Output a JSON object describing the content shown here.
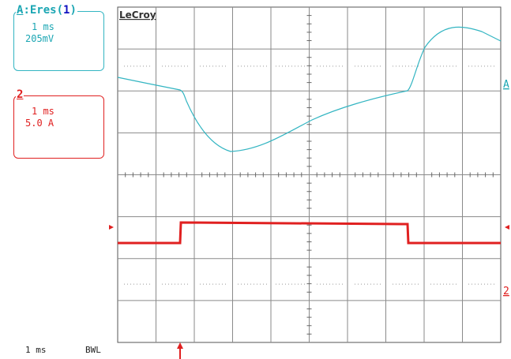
{
  "scope": {
    "brand": "LeCroy",
    "ch_a": {
      "label": "A",
      "source": ":Eres(",
      "source_num": "1",
      "source_close": ")",
      "timebase": "1 ms",
      "vdiv": "205mV",
      "color": "#1ba6b3"
    },
    "ch_2": {
      "label": "2",
      "timebase": "1 ms",
      "scale": "5.0 A",
      "color": "#e02020"
    },
    "bottom": {
      "timebase": "1 ms",
      "bwl": "BWL"
    },
    "markers": {
      "trace_a": "A",
      "trace_2": "2"
    }
  }
}
